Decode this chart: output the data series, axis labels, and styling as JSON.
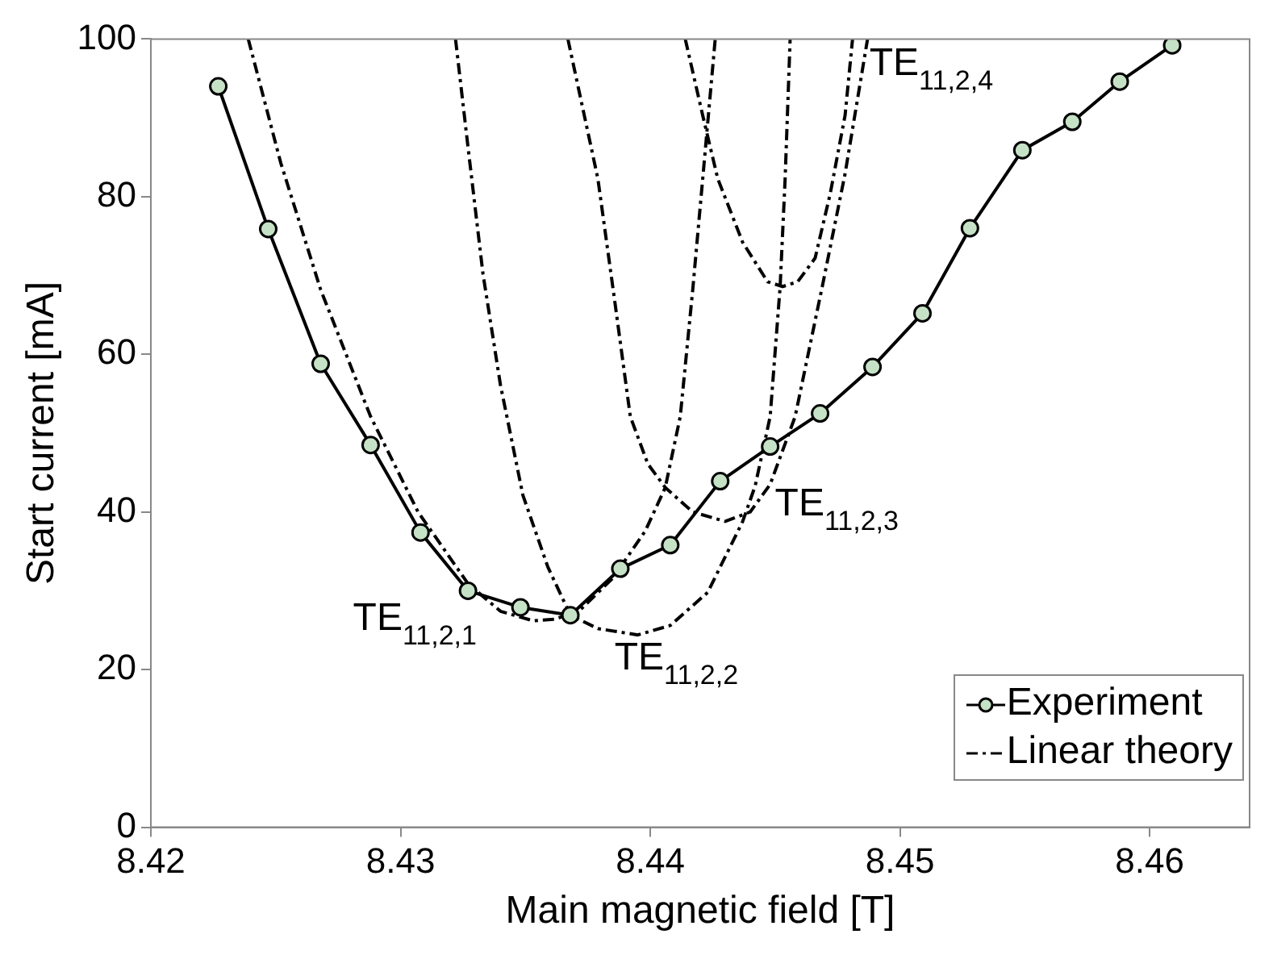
{
  "chart_data": {
    "type": "line",
    "xlabel": "Main magnetic field [T]",
    "ylabel": "Start current [mA]",
    "xlim": [
      8.42,
      8.464
    ],
    "xticks": [
      8.42,
      8.43,
      8.44,
      8.45,
      8.46
    ],
    "ylim": [
      0,
      100
    ],
    "yticks": [
      0,
      20,
      40,
      60,
      80,
      100
    ],
    "grid": false,
    "legend": "bottom right",
    "series": [
      {
        "name": "Experiment",
        "color": "#000000",
        "marker": "circle",
        "line_style": "solid",
        "x": [
          8.4227,
          8.4247,
          8.4268,
          8.4288,
          8.4308,
          8.4327,
          8.4348,
          8.4368,
          8.4388,
          8.4408,
          8.4428,
          8.4448,
          8.4468,
          8.4489,
          8.4509,
          8.4528,
          8.4549,
          8.4569,
          8.4588,
          8.4609
        ],
        "values": [
          94.0,
          75.9,
          58.8,
          48.5,
          37.4,
          30.0,
          27.9,
          26.9,
          32.8,
          35.8,
          43.9,
          48.3,
          52.5,
          58.4,
          65.2,
          76.0,
          85.9,
          89.5,
          94.6,
          99.2
        ]
      },
      {
        "name": "Linear theory",
        "color": "#000000",
        "marker": "none",
        "line_style": "dashed",
        "x": [
          8.4239,
          8.4252,
          8.4268,
          8.4288,
          8.4307,
          8.4327,
          8.434,
          8.4353,
          8.4362,
          8.4372,
          8.4385,
          8.4398,
          8.4406,
          8.4412,
          8.4417,
          8.4421,
          8.4426
        ],
        "values": [
          100,
          84.3,
          68.2,
          52.1,
          40.0,
          30.9,
          27.4,
          26.2,
          26.4,
          27.6,
          31.6,
          37.6,
          43.1,
          52.1,
          68.2,
          82.3,
          100
        ]
      },
      {
        "color": "#000000",
        "marker": "none",
        "line_style": "dashed",
        "x": [
          8.4322,
          8.4327,
          8.4333,
          8.434,
          8.4349,
          8.4359,
          8.4368,
          8.4379,
          8.4395,
          8.4408,
          8.4423,
          8.4437,
          8.4442,
          8.4448,
          8.4452,
          8.4454,
          8.4456
        ],
        "values": [
          100,
          86.3,
          70.2,
          56.1,
          42.1,
          33.0,
          26.9,
          25.2,
          24.4,
          25.6,
          29.8,
          38.8,
          43.3,
          52.1,
          68.6,
          82.3,
          100
        ]
      },
      {
        "color": "#000000",
        "marker": "none",
        "line_style": "dashed",
        "x": [
          8.4367,
          8.4379,
          8.4386,
          8.4392,
          8.4399,
          8.4406,
          8.4417,
          8.443,
          8.444,
          8.4448,
          8.4458,
          8.4469,
          8.4478,
          8.4487
        ],
        "values": [
          100,
          82.3,
          66.2,
          52.1,
          46.1,
          43.1,
          40.0,
          38.8,
          40.0,
          43.5,
          52.1,
          68.8,
          82.9,
          100
        ]
      },
      {
        "color": "#000000",
        "marker": "none",
        "line_style": "dashed",
        "x": [
          8.4414,
          8.4421,
          8.4427,
          8.4437,
          8.4447,
          8.4453,
          8.4459,
          8.4466,
          8.4472,
          8.4478,
          8.4481
        ],
        "values": [
          100,
          90.3,
          82.3,
          74.2,
          69.2,
          68.6,
          69.2,
          72.2,
          80.3,
          90.3,
          100
        ]
      }
    ],
    "annotations": [
      "TE$_{11,2,1}$",
      "TE$_{11,2,2}$",
      "TE$_{11,2,3}$",
      "TE$_{11,2,4}$"
    ]
  }
}
